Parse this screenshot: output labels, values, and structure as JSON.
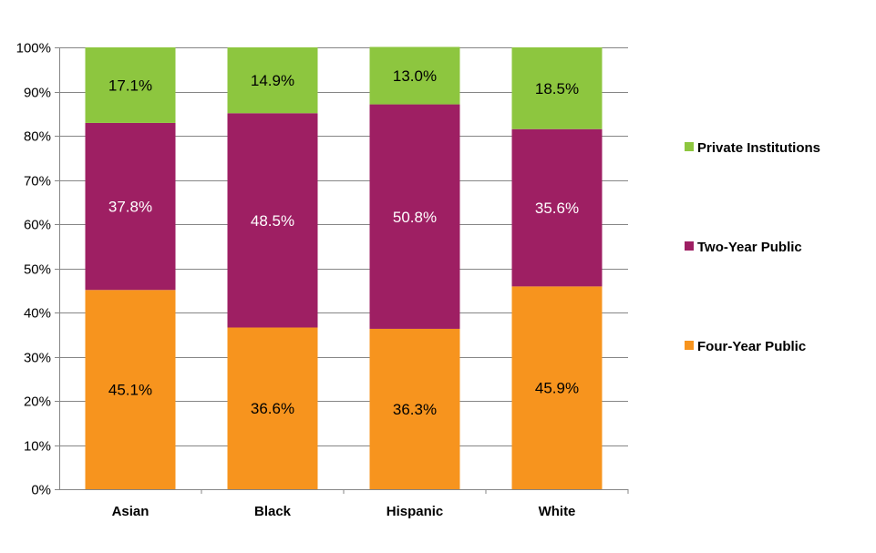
{
  "chart_data": {
    "type": "bar",
    "stacked": true,
    "title": "",
    "xlabel": "",
    "ylabel": "",
    "ylim": [
      0,
      100
    ],
    "yticks": [
      "0%",
      "10%",
      "20%",
      "30%",
      "40%",
      "50%",
      "60%",
      "70%",
      "80%",
      "90%",
      "100%"
    ],
    "grid": true,
    "legend_position": "right",
    "categories": [
      "Asian",
      "Black",
      "Hispanic",
      "White"
    ],
    "series": [
      {
        "name": "Four-Year Public",
        "color": "#F7941E",
        "label_color": "#000000",
        "values": [
          45.1,
          36.6,
          36.3,
          45.9
        ],
        "labels": [
          "45.1%",
          "36.6%",
          "36.3%",
          "45.9%"
        ]
      },
      {
        "name": "Two-Year Public",
        "color": "#9E1F63",
        "label_color": "#FFFFFF",
        "values": [
          37.8,
          48.5,
          50.8,
          35.6
        ],
        "labels": [
          "37.8%",
          "48.5%",
          "50.8%",
          "35.6%"
        ]
      },
      {
        "name": "Private Institutions",
        "color": "#8DC63F",
        "label_color": "#000000",
        "values": [
          17.1,
          14.9,
          13.0,
          18.5
        ],
        "labels": [
          "17.1%",
          "14.9%",
          "13.0%",
          "18.5%"
        ]
      }
    ],
    "legend_order": [
      "Private Institutions",
      "Two-Year Public",
      "Four-Year Public"
    ]
  }
}
